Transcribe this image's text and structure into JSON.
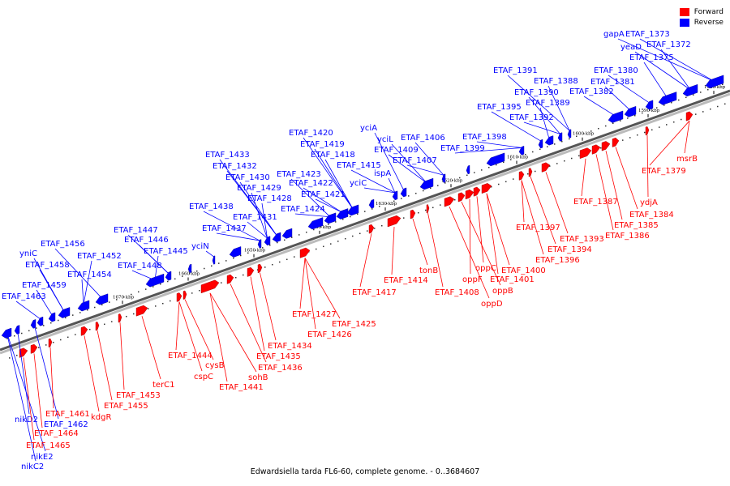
{
  "colors": {
    "forward": "#ff0000",
    "reverse": "#0000ff",
    "backbone": "#555555"
  },
  "legend": {
    "forward": "Forward",
    "reverse": "Reverse"
  },
  "caption": "Edwardsiella tarda FL6-60, complete genome. - 0..3684607",
  "ticks": [
    "1580 kbp",
    "1590 kbp",
    "1600 kbp",
    "1610 kbp",
    "1620 kbp",
    "1630 kbp",
    "1640 kbp",
    "1650 kbp",
    "1660 kbp",
    "1670 kbp"
  ],
  "reverse_labels": [
    "gapA",
    "ETAF_1373",
    "ETAF_1372",
    "yeaD",
    "ETAF_1375",
    "ETAF_1380",
    "ETAF_1381",
    "ETAF_1382",
    "ETAF_1391",
    "ETAF_1388",
    "ETAF_1390",
    "ETAF_1389",
    "ETAF_1392",
    "ETAF_1395",
    "ETAF_1398",
    "ETAF_1399",
    "ETAF_1406",
    "ETAF_1407",
    "ETAF_1409",
    "yciL",
    "yciA",
    "ETAF_1415",
    "ispA",
    "yciC",
    "ETAF_1420",
    "ETAF_1419",
    "ETAF_1418",
    "ETAF_1422",
    "ETAF_1423",
    "ETAF_1421",
    "ETAF_1424",
    "ETAF_1433",
    "ETAF_1432",
    "ETAF_1430",
    "ETAF_1429",
    "ETAF_1428",
    "ETAF_1431",
    "ETAF_1438",
    "ETAF_1437",
    "yciN",
    "ETAF_1447",
    "ETAF_1446",
    "ETAF_1445",
    "ETAF_1448",
    "ETAF_1456",
    "yniC",
    "ETAF_1458",
    "ETAF_1452",
    "ETAF_1454",
    "ETAF_1459",
    "ETAF_1463",
    "nikD2",
    "ETAF_1462",
    "nikE2",
    "nikC2"
  ],
  "forward_labels": [
    "msrB",
    "ETAF_1379",
    "ydjA",
    "ETAF_1384",
    "ETAF_1385",
    "ETAF_1386",
    "ETAF_1387",
    "ETAF_1393",
    "ETAF_1394",
    "ETAF_1396",
    "ETAF_1397",
    "ETAF_1400",
    "ETAF_1401",
    "oppC",
    "oppF",
    "oppB",
    "oppD",
    "ETAF_1408",
    "tonB",
    "ETAF_1414",
    "ETAF_1417",
    "ETAF_1425",
    "ETAF_1426",
    "ETAF_1427",
    "ETAF_1434",
    "ETAF_1435",
    "ETAF_1436",
    "sohB",
    "ETAF_1441",
    "cysB",
    "cspC",
    "ETAF_1444",
    "terC1",
    "ETAF_1453",
    "ETAF_1455",
    "kdgR",
    "ETAF_1461",
    "ETAF_1464",
    "ETAF_1465"
  ]
}
